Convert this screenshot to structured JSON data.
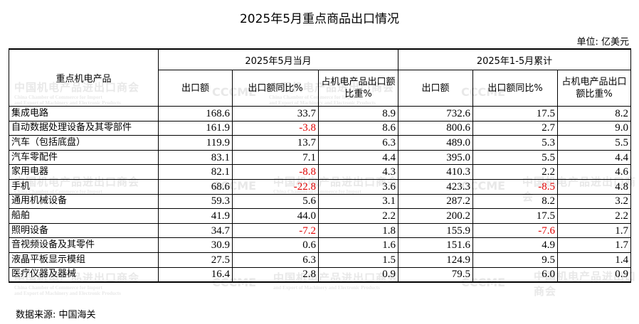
{
  "title": "2025年5月重点商品出口情况",
  "unit": "单位:  亿美元",
  "source": "数据来源:  中国海关",
  "header": {
    "row_header": "重点机电产品",
    "group_month": "2025年5月当月",
    "group_ytd": "2025年1-5月累计",
    "month_cols": [
      "出口额",
      "出口额同比%",
      "占机电产品出口额比重%"
    ],
    "ytd_cols": [
      "出口额",
      "出口额同比%",
      "占机电产品出口额比重%"
    ]
  },
  "rows": [
    {
      "name": "集成电路",
      "m_export": "168.6",
      "m_yoy": "33.7",
      "m_share": "8.9",
      "y_export": "732.6",
      "y_yoy": "17.5",
      "y_share": "8.2"
    },
    {
      "name": "自动数据处理设备及其零部件",
      "m_export": "161.9",
      "m_yoy": "-3.8",
      "m_share": "8.6",
      "y_export": "800.6",
      "y_yoy": "2.7",
      "y_share": "9.0"
    },
    {
      "name": "汽车（包括底盘）",
      "m_export": "119.9",
      "m_yoy": "13.7",
      "m_share": "6.3",
      "y_export": "489.0",
      "y_yoy": "5.3",
      "y_share": "5.5"
    },
    {
      "name": "汽车零配件",
      "m_export": "83.1",
      "m_yoy": "7.1",
      "m_share": "4.4",
      "y_export": "395.0",
      "y_yoy": "5.5",
      "y_share": "4.4"
    },
    {
      "name": "家用电器",
      "m_export": "82.1",
      "m_yoy": "-8.8",
      "m_share": "4.3",
      "y_export": "410.3",
      "y_yoy": "2.2",
      "y_share": "4.6"
    },
    {
      "name": "手机",
      "m_export": "68.6",
      "m_yoy": "-22.8",
      "m_share": "3.6",
      "y_export": "423.3",
      "y_yoy": "-8.5",
      "y_share": "4.8"
    },
    {
      "name": "通用机械设备",
      "m_export": "59.3",
      "m_yoy": "5.6",
      "m_share": "3.1",
      "y_export": "287.2",
      "y_yoy": "8.2",
      "y_share": "3.2"
    },
    {
      "name": "船舶",
      "m_export": "41.9",
      "m_yoy": "44.0",
      "m_share": "2.2",
      "y_export": "200.2",
      "y_yoy": "17.5",
      "y_share": "2.2"
    },
    {
      "name": "照明设备",
      "m_export": "34.7",
      "m_yoy": "-7.2",
      "m_share": "1.8",
      "y_export": "155.9",
      "y_yoy": "-7.6",
      "y_share": "1.7"
    },
    {
      "name": "音视频设备及其零件",
      "m_export": "30.9",
      "m_yoy": "0.6",
      "m_share": "1.6",
      "y_export": "151.6",
      "y_yoy": "4.9",
      "y_share": "1.7"
    },
    {
      "name": "液晶平板显示模组",
      "m_export": "27.5",
      "m_yoy": "6.3",
      "m_share": "1.5",
      "y_export": "124.9",
      "y_yoy": "9.5",
      "y_share": "1.4"
    },
    {
      "name": "医疗仪器及器械",
      "m_export": "16.4",
      "m_yoy": "2.8",
      "m_share": "0.9",
      "y_export": "79.5",
      "y_yoy": "6.0",
      "y_share": "0.9"
    }
  ],
  "watermark": {
    "cn": "中国机电产品进出口商会",
    "en1": "China Chamber of Commerce for Import",
    "en2": "and Export of Machinery and Electronic Products",
    "logo": "CCCME"
  },
  "colors": {
    "negative": "#e00000",
    "text": "#000000"
  }
}
